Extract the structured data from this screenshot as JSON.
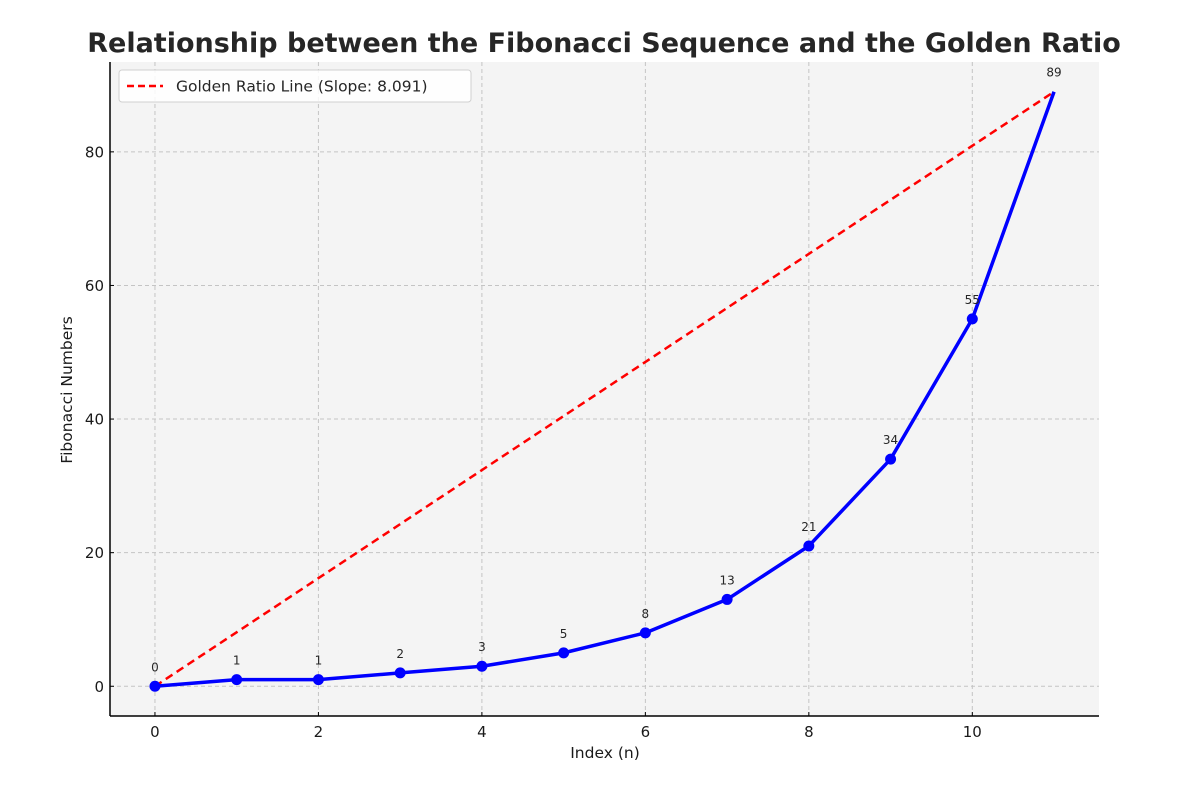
{
  "chart_data": {
    "type": "line",
    "title": "Relationship between the Fibonacci Sequence and the Golden Ratio",
    "xlabel": "Index (n)",
    "ylabel": "Fibonacci Numbers",
    "xlim": [
      -0.55,
      11.55
    ],
    "ylim": [
      -4.45,
      93.45
    ],
    "x_ticks": [
      0,
      2,
      4,
      6,
      8,
      10
    ],
    "y_ticks": [
      0,
      20,
      40,
      60,
      80
    ],
    "grid": true,
    "legend_position": "upper left",
    "x": [
      0,
      1,
      2,
      3,
      4,
      5,
      6,
      7,
      8,
      9,
      10,
      11
    ],
    "series": [
      {
        "name": "Fibonacci Sequence",
        "style": "solid line with circle markers",
        "color": "#0000ff",
        "in_legend": false,
        "values": [
          0,
          1,
          1,
          2,
          3,
          5,
          8,
          13,
          21,
          34,
          55,
          89
        ],
        "data_labels": [
          "0",
          "1",
          "1",
          "2",
          "3",
          "5",
          "8",
          "13",
          "21",
          "34",
          "55",
          "89"
        ]
      },
      {
        "name": "Golden Ratio Line (Slope: 8.091)",
        "style": "dashed line",
        "color": "#ff0000",
        "in_legend": true,
        "x": [
          0,
          11
        ],
        "values": [
          0,
          89
        ]
      }
    ],
    "colors": {
      "plot_background": "#f4f4f4",
      "grid": "#c4c4c4",
      "fibonacci_line": "#0000ff",
      "golden_line": "#ff0000"
    }
  }
}
